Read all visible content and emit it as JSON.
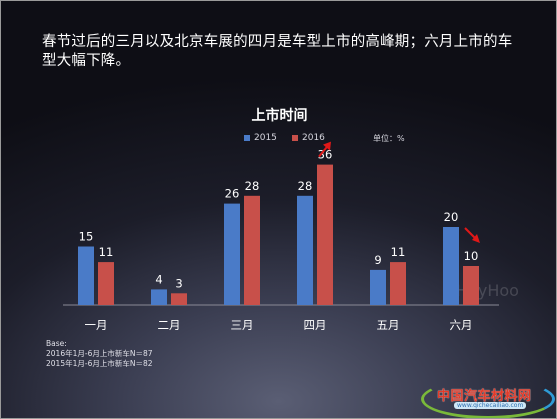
{
  "headline": "春节过后的三月以及北京车展的四月是车型上市的高峰期；六月上市的车型大幅下降。",
  "base_notes": [
    "Base:",
    "2016年1月-6月上市新车N＝87",
    "2015年1月-6月上市新车N＝82"
  ],
  "watermark": "HeyHoo",
  "logo": {
    "name": "中国汽车材料网",
    "sub": "www.qichecailiao.com"
  },
  "colors": {
    "series_2015": "#4a7bc8",
    "series_2016": "#c8504a",
    "arrow": "#e01818"
  },
  "chart_data": {
    "type": "bar",
    "title": "上市时间",
    "unit_note": "单位：%",
    "categories": [
      "一月",
      "二月",
      "三月",
      "四月",
      "五月",
      "六月"
    ],
    "series": [
      {
        "name": "2015",
        "values": [
          15,
          4,
          26,
          28,
          9,
          20
        ]
      },
      {
        "name": "2016",
        "values": [
          11,
          3,
          28,
          36,
          11,
          10
        ]
      }
    ],
    "legend_position": "top",
    "grid": false,
    "ylim": [
      0,
      40
    ],
    "annotations": [
      {
        "type": "arrow",
        "category": "四月",
        "series": "2016",
        "direction": "up"
      },
      {
        "type": "arrow",
        "category": "六月",
        "series": "2016",
        "direction": "down"
      }
    ]
  }
}
